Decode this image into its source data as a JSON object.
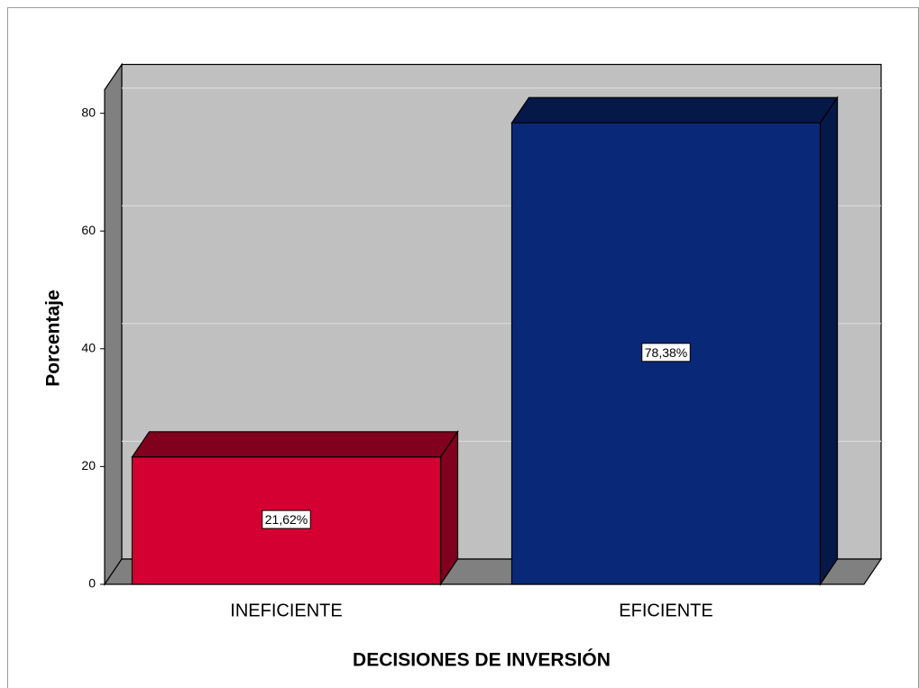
{
  "chart_data": {
    "type": "bar3d",
    "categories": [
      "INEFICIENTE",
      "EFICIENTE"
    ],
    "values": [
      21.62,
      78.38
    ],
    "value_labels": [
      "21,62%",
      "78,38%"
    ],
    "colors": [
      "#d50032",
      "#0a2878"
    ],
    "ylabel": "Porcentaje",
    "xlabel": "DECISIONES DE INVERSIÓN",
    "ylim": [
      0,
      84
    ],
    "yticks": [
      0,
      20,
      40,
      60,
      80
    ],
    "grid": true
  }
}
